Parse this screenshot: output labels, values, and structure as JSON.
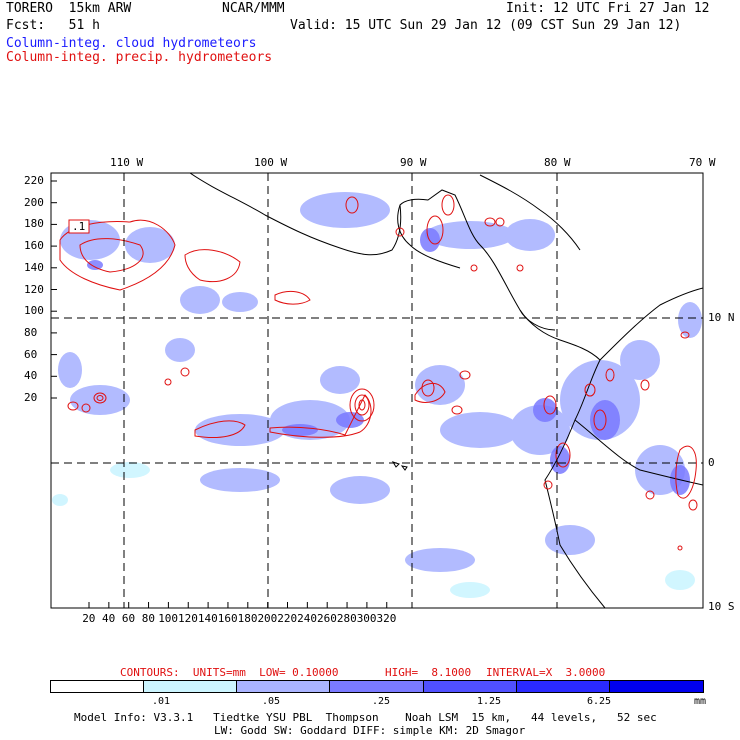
{
  "header": {
    "model": "TORERO  15km ARW",
    "org": "NCAR/MMM",
    "init": "Init: 12 UTC Fri 27 Jan 12",
    "fcst": "Fcst:   51 h",
    "valid": "Valid: 15 UTC Sun 29 Jan 12 (09 CST Sun 29 Jan 12)",
    "field1": "Column-integ. cloud hydrometeors",
    "field2": "Column-integ. precip. hydrometeors"
  },
  "colors": {
    "field1": "#1a1aff",
    "field2": "#e01010",
    "shade": [
      "#ffffff",
      "#ccf5ff",
      "#aab4ff",
      "#7a7aff",
      "#5050ff",
      "#2a2aff",
      "#0000ee"
    ]
  },
  "map": {
    "top_lon_labels": [
      "110 W",
      "100 W",
      "90 W",
      "80 W",
      "70 W"
    ],
    "right_lat_labels": [
      "10 N",
      "0",
      "10 S"
    ],
    "y_ticks": [
      "220",
      "200",
      "180",
      "160",
      "140",
      "120",
      "100",
      "80",
      "60",
      "40",
      "20"
    ],
    "x_ticks": [
      "20",
      "40",
      "60",
      "80",
      "100",
      "120",
      "140",
      "160",
      "180",
      "200",
      "220",
      "240",
      "260",
      "280",
      "300",
      "320"
    ],
    "contour_label": ".1"
  },
  "contours_line": {
    "text1": "CONTOURS:  UNITS=mm  LOW= 0.10000",
    "text2": "HIGH=  8.1000",
    "text3": "INTERVAL=X  3.0000"
  },
  "legend": {
    "labels": [
      ".01",
      ".05",
      ".25",
      "1.25",
      "6.25"
    ],
    "units": "mm"
  },
  "footer": {
    "line1": "Model Info: V3.3.1   Tiedtke YSU PBL  Thompson    Noah LSM  15 km,   44 levels,   52 sec",
    "line2": "LW: Godd SW: Goddard DIFF: simple KM: 2D Smagor"
  }
}
